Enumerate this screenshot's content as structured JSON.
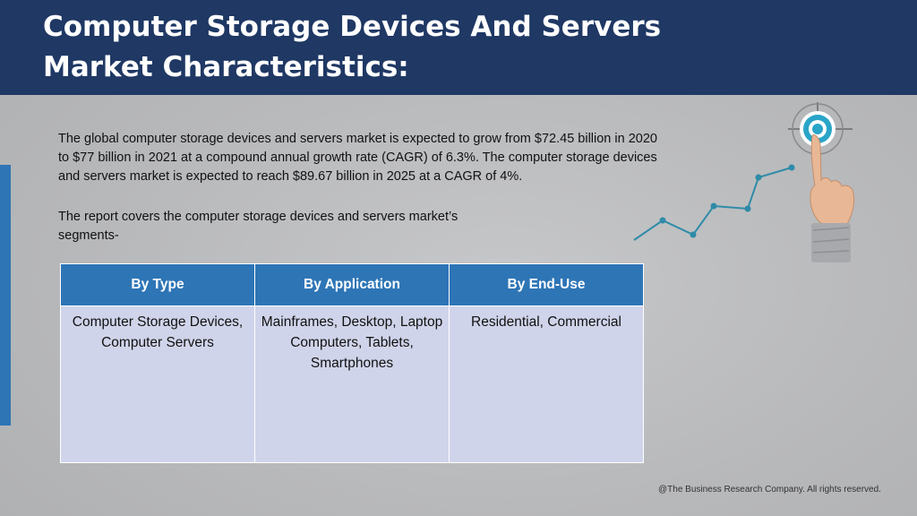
{
  "header": {
    "title": "Computer Storage Devices And Servers Market Characteristics:"
  },
  "intro": {
    "paragraph_1": "The global computer storage devices and servers market is expected to grow from $72.45 billion in 2020 to $77 billion in 2021 at a compound annual growth rate (CAGR) of 6.3%. The computer storage devices and servers market is expected to reach $89.67 billion in 2025 at a CAGR of 4%.",
    "paragraph_2": "The report covers the computer storage devices and servers market’s segments-"
  },
  "segments_table": {
    "headers": [
      "By Type",
      "By Application",
      "By End-Use"
    ],
    "cells": [
      "Computer Storage Devices, Computer Servers",
      "Mainframes, Desktop, Laptop Computers, Tablets, Smartphones",
      "Residential, Commercial"
    ]
  },
  "footer": {
    "copyright": "@The Business Research Company. All rights reserved."
  },
  "colors": {
    "header_bg": "#1f3864",
    "accent_blue": "#2e75b6",
    "table_cell_bg": "#d0d4ea",
    "chart_line": "#2e8ba8"
  },
  "icons": [
    "growth-chart-icon",
    "target-icon",
    "pointing-hand-icon"
  ]
}
